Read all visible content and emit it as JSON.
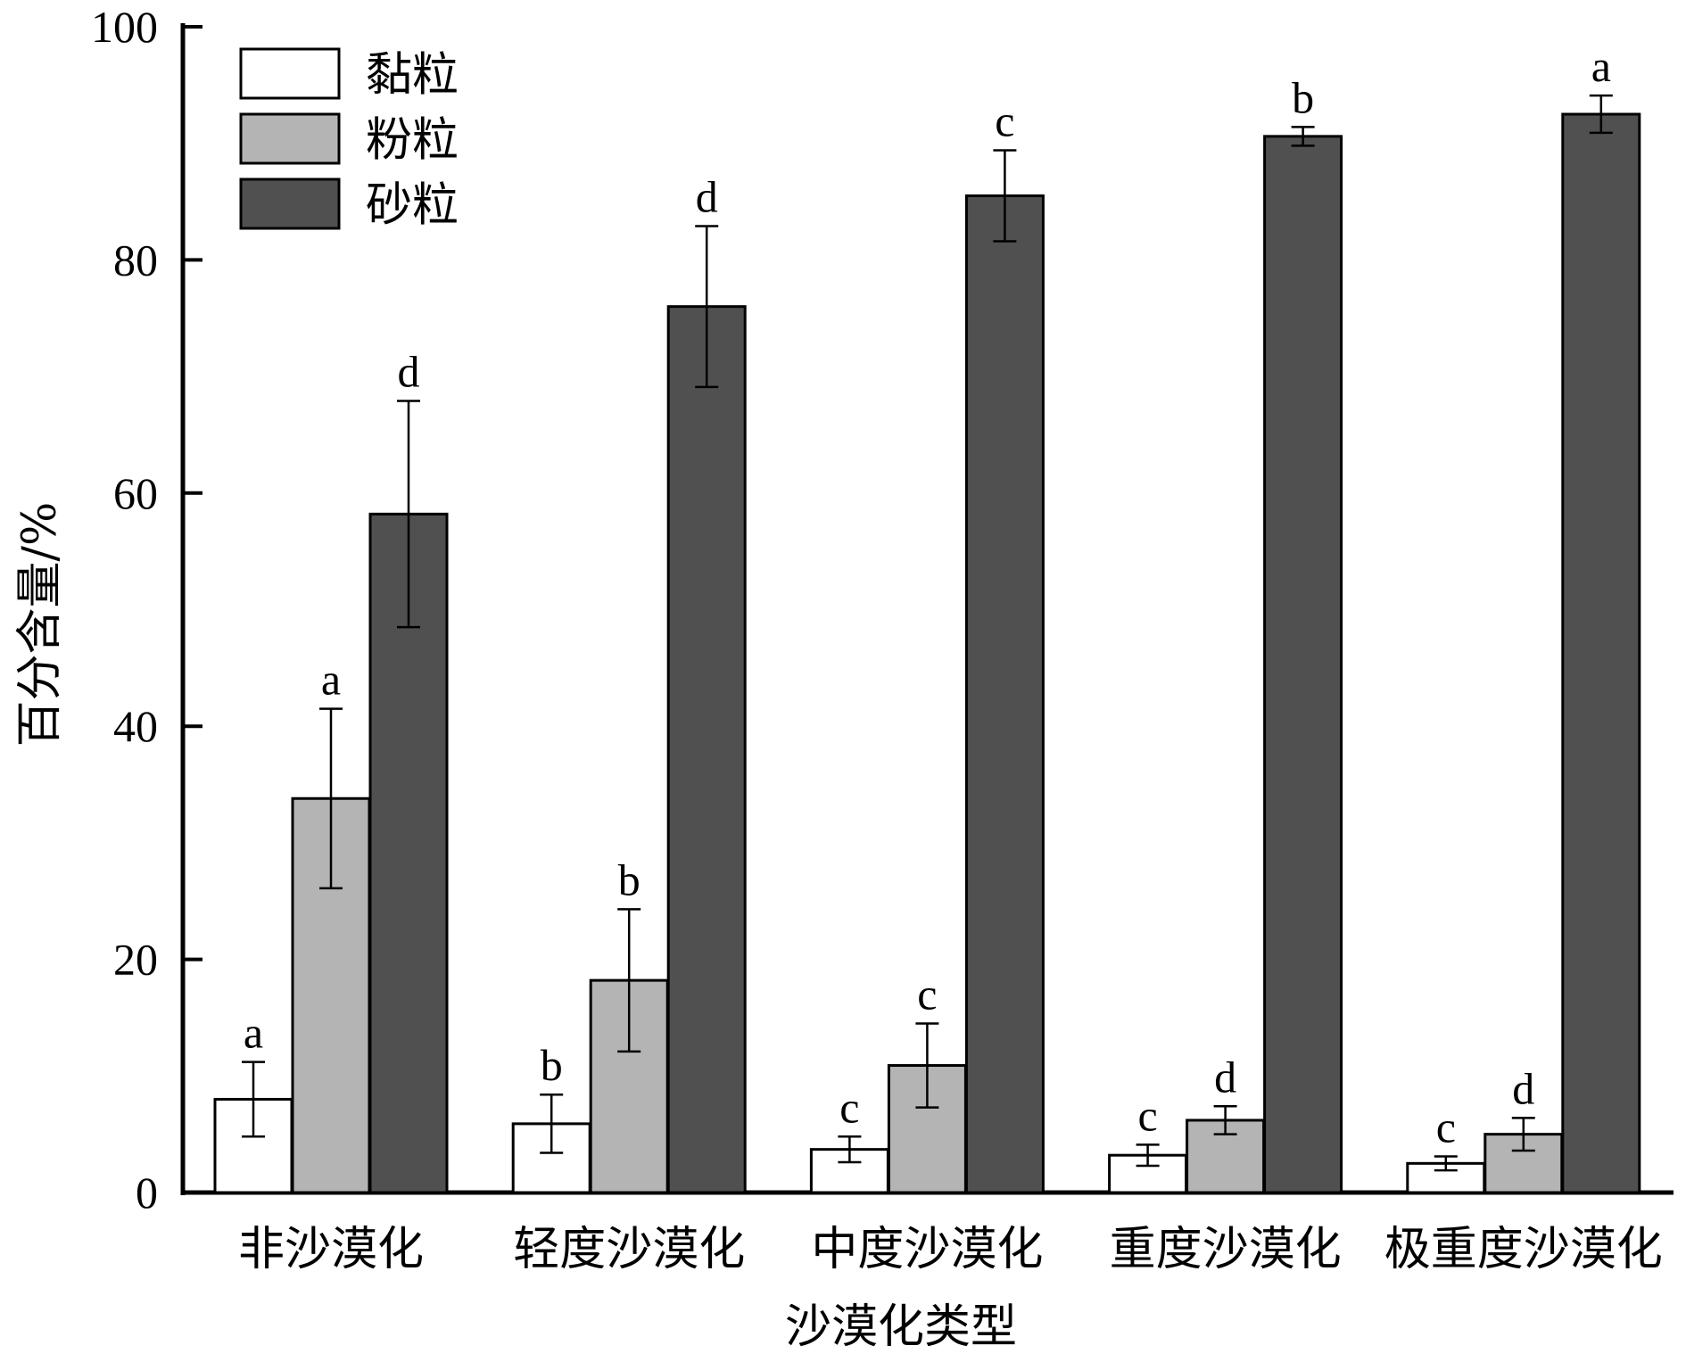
{
  "chart_data": {
    "type": "bar",
    "ylabel": "百分含量/%",
    "xlabel": "沙漠化类型",
    "ylim": [
      0,
      100
    ],
    "yticks": [
      0,
      20,
      40,
      60,
      80,
      100
    ],
    "yticks_labels": [
      "0",
      "20",
      "40",
      "60",
      "80",
      "100"
    ],
    "categories": [
      "非沙漠化",
      "轻度沙漠化",
      "中度沙漠化",
      "重度沙漠化",
      "极重度沙漠化"
    ],
    "legend_position": "top-left",
    "grid": false,
    "series": [
      {
        "name": "黏粒",
        "color": "#ffffff",
        "values": [
          8.0,
          5.9,
          3.7,
          3.2,
          2.5
        ],
        "errors": [
          3.2,
          2.5,
          1.1,
          0.9,
          0.6
        ],
        "sig_labels": [
          "a",
          "b",
          "c",
          "c",
          "c"
        ]
      },
      {
        "name": "粉粒",
        "color": "#b4b4b4",
        "values": [
          33.8,
          18.2,
          10.9,
          6.2,
          5.0
        ],
        "errors": [
          7.7,
          6.1,
          3.6,
          1.2,
          1.4
        ],
        "sig_labels": [
          "a",
          "b",
          "c",
          "d",
          "d"
        ]
      },
      {
        "name": "砂粒",
        "color": "#505050",
        "values": [
          58.2,
          76.0,
          85.5,
          90.6,
          92.5
        ],
        "errors": [
          9.7,
          6.9,
          3.9,
          0.8,
          1.6
        ],
        "sig_labels": [
          "d",
          "d",
          "c",
          "b",
          "a"
        ]
      }
    ]
  }
}
